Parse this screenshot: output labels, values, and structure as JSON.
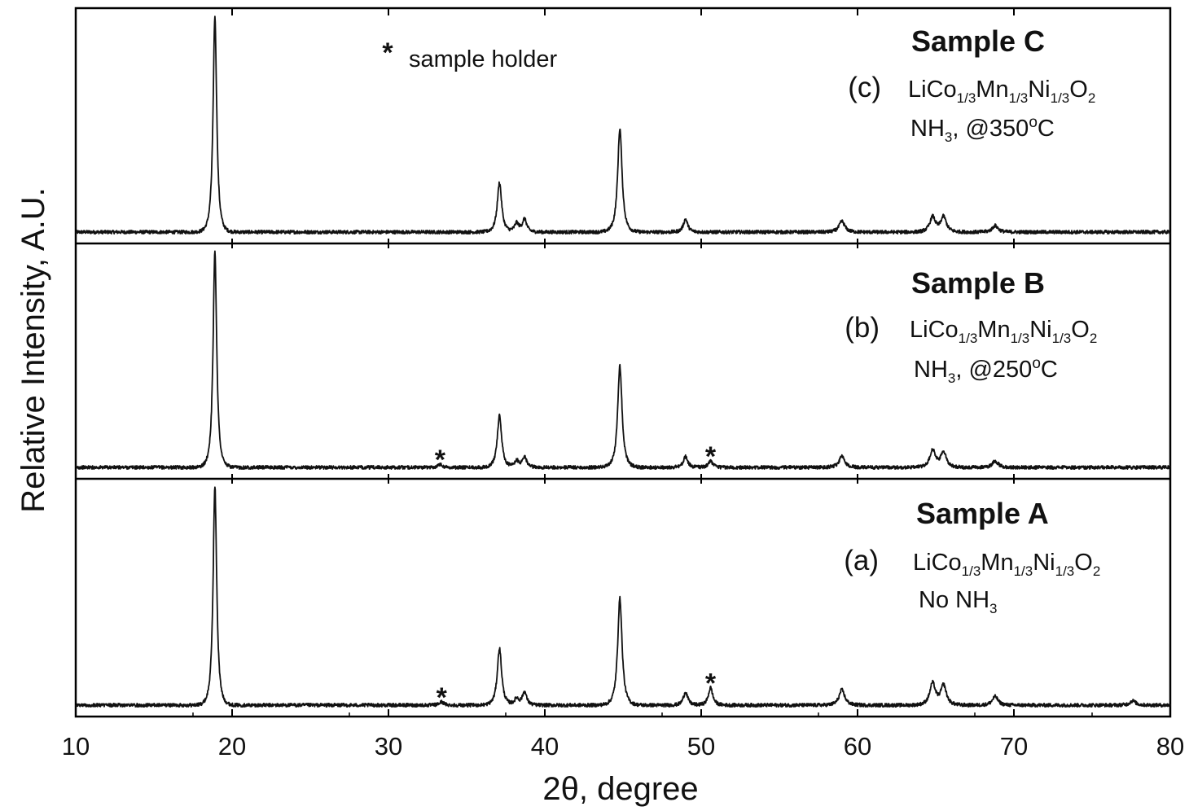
{
  "chart_data": {
    "type": "line",
    "xlabel": "2θ, degree",
    "ylabel": "Relative Intensity, A.U.",
    "xlim": [
      10,
      80
    ],
    "x_ticks": [
      10,
      20,
      30,
      40,
      50,
      60,
      70,
      80
    ],
    "grid": false,
    "legend": {
      "marker": "*",
      "text": "sample holder",
      "position": "top-center"
    },
    "series": [
      {
        "title": "Sample C",
        "letter": "(c)",
        "formula": [
          "LiCo",
          "1/3",
          "Mn",
          "1/3",
          "Ni",
          "1/3",
          "O",
          "2"
        ],
        "condition": [
          "NH",
          "3",
          ", @350",
          "o",
          "C"
        ],
        "peaks": [
          {
            "x": 18.9,
            "y": 100
          },
          {
            "x": 37.1,
            "y": 23
          },
          {
            "x": 38.2,
            "y": 4
          },
          {
            "x": 38.7,
            "y": 6
          },
          {
            "x": 44.8,
            "y": 48
          },
          {
            "x": 49.0,
            "y": 6
          },
          {
            "x": 59.0,
            "y": 5
          },
          {
            "x": 64.8,
            "y": 7
          },
          {
            "x": 65.5,
            "y": 7
          },
          {
            "x": 68.8,
            "y": 3
          }
        ],
        "holder_peaks": []
      },
      {
        "title": "Sample B",
        "letter": "(b)",
        "formula": [
          "LiCo",
          "1/3",
          "Mn",
          "1/3",
          "Ni",
          "1/3",
          "O",
          "2"
        ],
        "condition": [
          "NH",
          "3",
          ", @250",
          "o",
          "C"
        ],
        "peaks": [
          {
            "x": 18.9,
            "y": 100
          },
          {
            "x": 37.1,
            "y": 24
          },
          {
            "x": 38.2,
            "y": 3
          },
          {
            "x": 38.7,
            "y": 5
          },
          {
            "x": 44.8,
            "y": 47
          },
          {
            "x": 49.0,
            "y": 5
          },
          {
            "x": 50.6,
            "y": 3
          },
          {
            "x": 59.0,
            "y": 5
          },
          {
            "x": 64.8,
            "y": 8
          },
          {
            "x": 65.5,
            "y": 7
          },
          {
            "x": 68.8,
            "y": 3
          }
        ],
        "holder_peaks": [
          33.3,
          50.6
        ]
      },
      {
        "title": "Sample A",
        "letter": "(a)",
        "formula": [
          "LiCo",
          "1/3",
          "Mn",
          "1/3",
          "Ni",
          "1/3",
          "O",
          "2"
        ],
        "condition": [
          "No NH",
          "3",
          "",
          "",
          ""
        ],
        "peaks": [
          {
            "x": 18.9,
            "y": 100
          },
          {
            "x": 37.1,
            "y": 26
          },
          {
            "x": 38.2,
            "y": 3
          },
          {
            "x": 38.7,
            "y": 6
          },
          {
            "x": 44.8,
            "y": 49
          },
          {
            "x": 49.0,
            "y": 6
          },
          {
            "x": 50.6,
            "y": 8
          },
          {
            "x": 59.0,
            "y": 7
          },
          {
            "x": 64.8,
            "y": 10
          },
          {
            "x": 65.5,
            "y": 9
          },
          {
            "x": 68.8,
            "y": 4
          },
          {
            "x": 77.6,
            "y": 2
          }
        ],
        "holder_peaks": [
          33.4,
          50.6
        ]
      }
    ]
  }
}
